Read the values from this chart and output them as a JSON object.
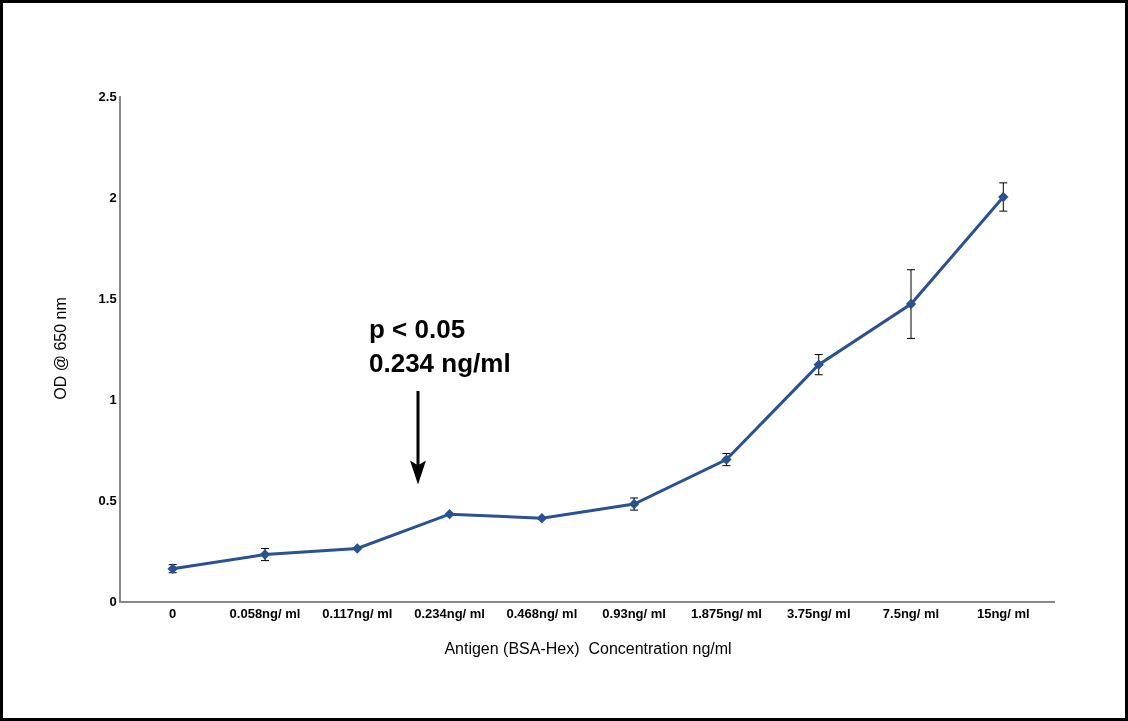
{
  "chart_data": {
    "type": "line",
    "xlabel": "Antigen (BSA-Hex)  Concentration ng/ml",
    "ylabel": "OD @ 650 nm",
    "categories": [
      "0",
      "0.058ng/ ml",
      "0.117ng/ ml",
      "0.234ng/ ml",
      "0.468ng/ ml",
      "0.93ng/ ml",
      "1.875ng/ ml",
      "3.75ng/ ml",
      "7.5ng/ ml",
      "15ng/ ml"
    ],
    "series": [
      {
        "color": "#2a5290",
        "values": [
          0.16,
          0.23,
          0.26,
          0.43,
          0.41,
          0.48,
          0.7,
          1.17,
          1.47,
          2.0
        ],
        "errors": [
          0.02,
          0.03,
          null,
          null,
          null,
          0.03,
          0.03,
          0.05,
          0.17,
          0.07
        ]
      }
    ],
    "ylim": [
      0,
      2.5
    ],
    "yticks": [
      0,
      0.5,
      1,
      1.5,
      2,
      2.5
    ],
    "grid": false,
    "marker": "diamond",
    "line_style": "solid",
    "annotations": [
      "p < 0.05\n0.234 ng/ml"
    ]
  }
}
